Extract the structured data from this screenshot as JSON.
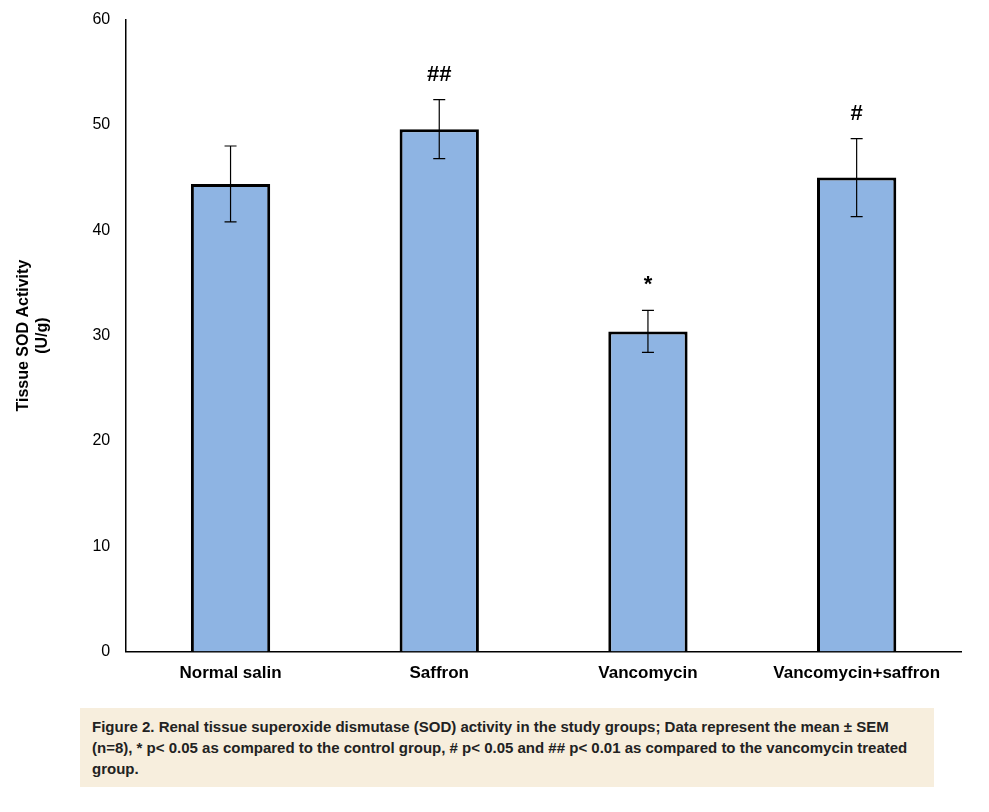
{
  "chart_data": {
    "type": "bar",
    "categories": [
      "Normal salin",
      "Saffron",
      "Vancomycin",
      "Vancomycin+saffron"
    ],
    "values": [
      44.4,
      49.6,
      30.4,
      45.0
    ],
    "errors": [
      3.6,
      2.8,
      2.0,
      3.7
    ],
    "annotations": [
      {
        "category": "Saffron",
        "text": "##"
      },
      {
        "category": "Vancomycin",
        "text": "*"
      },
      {
        "category": "Vancomycin+saffron",
        "text": "#"
      }
    ],
    "color": "#8eb4e3",
    "y_label": [
      "Tissue SOD Activity",
      "(U/g)"
    ],
    "ylim": [
      0,
      60
    ],
    "yticks": [
      0,
      10,
      20,
      30,
      40,
      50,
      60
    ],
    "grid": false,
    "caption": "Figure 2. Renal tissue superoxide dismutase (SOD) activity in the study groups; Data represent the mean ± SEM (n=8), * p< 0.05 as compared to the control group, # p< 0.05 and ## p< 0.01 as compared to the vancomycin treated group."
  }
}
